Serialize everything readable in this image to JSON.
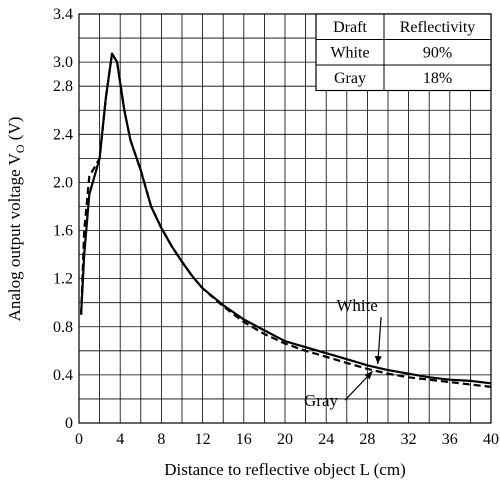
{
  "chart_data": {
    "type": "line",
    "title": "",
    "xlabel": "Distance to reflective object L (cm)",
    "ylabel_parts": {
      "prefix": "Analog output voltage V",
      "subscript": "O",
      "suffix": " (V)"
    },
    "xlim": [
      0,
      40
    ],
    "ylim": [
      0,
      3.4
    ],
    "x_ticks": [
      "0",
      "4",
      "8",
      "12",
      "16",
      "20",
      "24",
      "28",
      "32",
      "36",
      "40"
    ],
    "y_ticks": [
      "0",
      "0.4",
      "0.8",
      "1.2",
      "1.6",
      "2.0",
      "2.4",
      "2.8",
      "3.0",
      "3.4"
    ],
    "y_tick_values": [
      0,
      0.4,
      0.8,
      1.2,
      1.6,
      2.0,
      2.4,
      2.8,
      3.0,
      3.4
    ],
    "grid": true,
    "series": [
      {
        "name": "White",
        "line_style": "solid",
        "points": [
          [
            0.2,
            0.9
          ],
          [
            0.5,
            1.4
          ],
          [
            1,
            1.9
          ],
          [
            2,
            2.2
          ],
          [
            2.6,
            2.7
          ],
          [
            3.2,
            3.07
          ],
          [
            3.7,
            3.0
          ],
          [
            4.4,
            2.6
          ],
          [
            5,
            2.35
          ],
          [
            6,
            2.1
          ],
          [
            7,
            1.8
          ],
          [
            8,
            1.62
          ],
          [
            9,
            1.47
          ],
          [
            10,
            1.34
          ],
          [
            11,
            1.22
          ],
          [
            12,
            1.12
          ],
          [
            14,
            0.98
          ],
          [
            16,
            0.86
          ],
          [
            18,
            0.77
          ],
          [
            20,
            0.68
          ],
          [
            22,
            0.63
          ],
          [
            24,
            0.58
          ],
          [
            26,
            0.53
          ],
          [
            28,
            0.48
          ],
          [
            30,
            0.44
          ],
          [
            32,
            0.41
          ],
          [
            34,
            0.38
          ],
          [
            36,
            0.36
          ],
          [
            38,
            0.35
          ],
          [
            40,
            0.33
          ]
        ]
      },
      {
        "name": "Gray",
        "line_style": "dashed",
        "points": [
          [
            0.2,
            0.9
          ],
          [
            0.5,
            1.6
          ],
          [
            1,
            2.05
          ],
          [
            2,
            2.2
          ],
          [
            2.6,
            2.7
          ],
          [
            3.2,
            3.07
          ],
          [
            3.7,
            3.0
          ],
          [
            4.4,
            2.6
          ],
          [
            5,
            2.35
          ],
          [
            6,
            2.1
          ],
          [
            7,
            1.8
          ],
          [
            8,
            1.62
          ],
          [
            9,
            1.47
          ],
          [
            10,
            1.34
          ],
          [
            11,
            1.22
          ],
          [
            12,
            1.12
          ],
          [
            14,
            0.97
          ],
          [
            16,
            0.84
          ],
          [
            18,
            0.74
          ],
          [
            20,
            0.66
          ],
          [
            22,
            0.6
          ],
          [
            24,
            0.55
          ],
          [
            26,
            0.5
          ],
          [
            28,
            0.45
          ],
          [
            30,
            0.41
          ],
          [
            32,
            0.38
          ],
          [
            34,
            0.36
          ],
          [
            36,
            0.34
          ],
          [
            38,
            0.32
          ],
          [
            40,
            0.3
          ]
        ]
      }
    ],
    "annotations": [
      {
        "text": "White",
        "x": 27.0,
        "y": 0.93,
        "arrow_to": [
          29.0,
          0.49
        ]
      },
      {
        "text": "Gray",
        "x": 23.5,
        "y": 0.14,
        "arrow_to": [
          28.5,
          0.43
        ]
      }
    ],
    "legend_table": {
      "headers": [
        "Draft",
        "Reflectivity"
      ],
      "rows": [
        [
          "White",
          "90%"
        ],
        [
          "Gray",
          "18%"
        ]
      ]
    }
  }
}
